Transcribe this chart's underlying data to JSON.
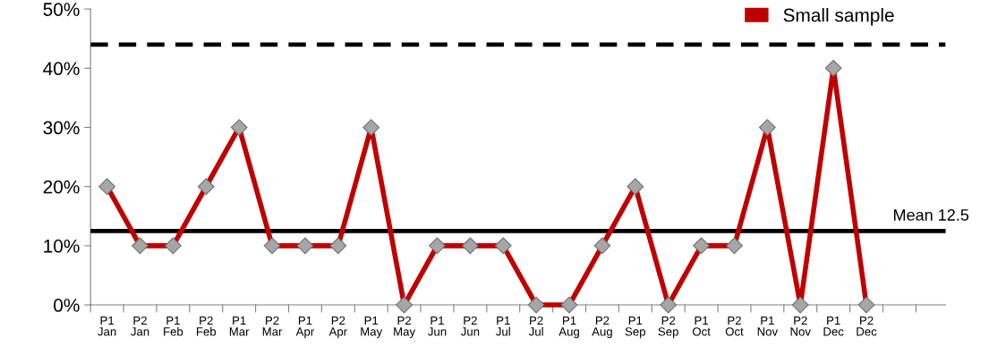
{
  "chart_data": {
    "type": "line",
    "categories": [
      "P1\nJan",
      "P2\nJan",
      "P1\nFeb",
      "P2\nFeb",
      "P1\nMar",
      "P2\nMar",
      "P1\nApr",
      "P2\nApr",
      "P1\nMay",
      "P2\nMay",
      "P1\nJun",
      "P2\nJun",
      "P1\nJul",
      "P2\nJul",
      "P1\nAug",
      "P2\nAug",
      "P1\nSep",
      "P2\nSep",
      "P1\nOct",
      "P2\nOct",
      "P1\nNov",
      "P2\nNov",
      "P1\nDec",
      "P2\nDec"
    ],
    "series": [
      {
        "name": "Small sample",
        "color": "#c00000",
        "values": [
          20,
          10,
          10,
          20,
          30,
          10,
          10,
          10,
          30,
          0,
          10,
          10,
          10,
          0,
          0,
          10,
          20,
          0,
          10,
          10,
          30,
          0,
          40,
          0
        ]
      }
    ],
    "ylim": [
      0,
      50
    ],
    "yticks": [
      {
        "value": 0,
        "label": "0%"
      },
      {
        "value": 10,
        "label": "10%"
      },
      {
        "value": 20,
        "label": "20%"
      },
      {
        "value": 30,
        "label": "30%"
      },
      {
        "value": 40,
        "label": "40%"
      },
      {
        "value": 50,
        "label": "50%"
      }
    ],
    "ref_lines": [
      {
        "axis": "y",
        "value": 12.5,
        "label": "Mean 12.5",
        "color": "#000000",
        "line_style": "solid"
      },
      {
        "axis": "y",
        "value": 44,
        "color": "#000000",
        "line_style": "dashed"
      }
    ],
    "marker": "diamond",
    "line_style": "solid",
    "grid": false,
    "legend": "top right"
  }
}
